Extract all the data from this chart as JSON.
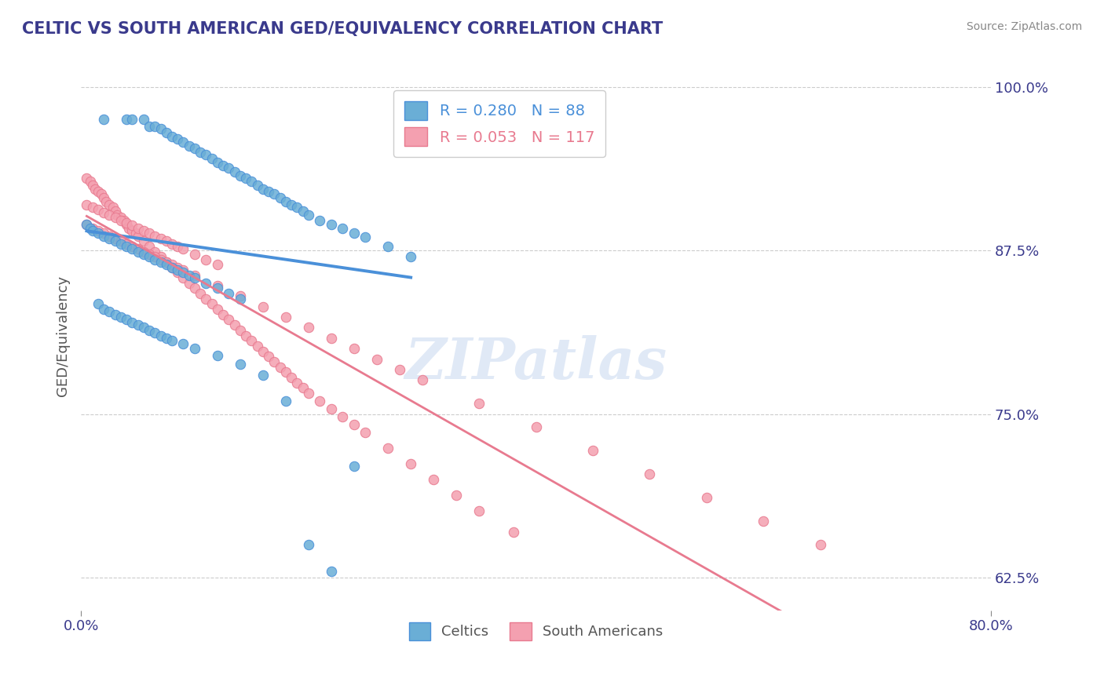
{
  "title": "CELTIC VS SOUTH AMERICAN GED/EQUIVALENCY CORRELATION CHART",
  "source": "Source: ZipAtlas.com",
  "xlabel_celtics": "Celtics",
  "xlabel_south_americans": "South Americans",
  "ylabel": "GED/Equivalency",
  "xlim": [
    0.0,
    0.8
  ],
  "ylim": [
    0.6,
    1.02
  ],
  "xticks": [
    0.0,
    0.8
  ],
  "xticklabels": [
    "0.0%",
    "80.0%"
  ],
  "yticks": [
    0.625,
    0.75,
    0.875,
    1.0
  ],
  "yticklabels": [
    "62.5%",
    "75.0%",
    "87.5%",
    "100.0%"
  ],
  "celtics_R": 0.28,
  "celtics_N": 88,
  "south_americans_R": 0.053,
  "south_americans_N": 117,
  "color_celtics": "#6aaed6",
  "color_south_americans": "#f4a0b0",
  "color_celtics_line": "#4a90d9",
  "color_south_americans_line": "#e87a8f",
  "watermark": "ZIPatlas",
  "celtics_x": [
    0.02,
    0.04,
    0.045,
    0.055,
    0.06,
    0.065,
    0.07,
    0.075,
    0.08,
    0.085,
    0.09,
    0.095,
    0.1,
    0.105,
    0.11,
    0.115,
    0.12,
    0.125,
    0.13,
    0.135,
    0.14,
    0.145,
    0.15,
    0.155,
    0.16,
    0.165,
    0.17,
    0.175,
    0.18,
    0.185,
    0.19,
    0.195,
    0.2,
    0.21,
    0.22,
    0.23,
    0.24,
    0.25,
    0.27,
    0.29,
    0.005,
    0.008,
    0.01,
    0.015,
    0.02,
    0.025,
    0.03,
    0.035,
    0.04,
    0.045,
    0.05,
    0.055,
    0.06,
    0.065,
    0.07,
    0.075,
    0.08,
    0.085,
    0.09,
    0.095,
    0.1,
    0.11,
    0.12,
    0.13,
    0.14,
    0.015,
    0.02,
    0.025,
    0.03,
    0.035,
    0.04,
    0.045,
    0.05,
    0.055,
    0.06,
    0.065,
    0.07,
    0.075,
    0.08,
    0.09,
    0.1,
    0.12,
    0.14,
    0.16,
    0.18,
    0.2,
    0.22,
    0.24
  ],
  "celtics_y": [
    0.975,
    0.975,
    0.975,
    0.975,
    0.97,
    0.97,
    0.968,
    0.965,
    0.962,
    0.96,
    0.958,
    0.955,
    0.953,
    0.95,
    0.948,
    0.945,
    0.942,
    0.94,
    0.938,
    0.935,
    0.932,
    0.93,
    0.928,
    0.925,
    0.922,
    0.92,
    0.918,
    0.915,
    0.912,
    0.91,
    0.908,
    0.905,
    0.902,
    0.898,
    0.895,
    0.892,
    0.888,
    0.885,
    0.878,
    0.87,
    0.895,
    0.892,
    0.89,
    0.888,
    0.886,
    0.884,
    0.882,
    0.88,
    0.878,
    0.876,
    0.874,
    0.872,
    0.87,
    0.868,
    0.866,
    0.864,
    0.862,
    0.86,
    0.858,
    0.856,
    0.854,
    0.85,
    0.846,
    0.842,
    0.838,
    0.834,
    0.83,
    0.828,
    0.826,
    0.824,
    0.822,
    0.82,
    0.818,
    0.816,
    0.814,
    0.812,
    0.81,
    0.808,
    0.806,
    0.804,
    0.8,
    0.795,
    0.788,
    0.78,
    0.76,
    0.65,
    0.63,
    0.71
  ],
  "south_americans_x": [
    0.005,
    0.008,
    0.01,
    0.012,
    0.015,
    0.018,
    0.02,
    0.022,
    0.025,
    0.028,
    0.03,
    0.032,
    0.035,
    0.038,
    0.04,
    0.042,
    0.045,
    0.048,
    0.05,
    0.055,
    0.06,
    0.065,
    0.07,
    0.075,
    0.08,
    0.085,
    0.09,
    0.095,
    0.1,
    0.105,
    0.11,
    0.115,
    0.12,
    0.125,
    0.13,
    0.135,
    0.14,
    0.145,
    0.15,
    0.155,
    0.16,
    0.165,
    0.17,
    0.175,
    0.18,
    0.185,
    0.19,
    0.195,
    0.2,
    0.21,
    0.22,
    0.23,
    0.24,
    0.25,
    0.27,
    0.29,
    0.31,
    0.33,
    0.35,
    0.38,
    0.005,
    0.01,
    0.015,
    0.02,
    0.025,
    0.03,
    0.035,
    0.04,
    0.045,
    0.05,
    0.055,
    0.06,
    0.065,
    0.07,
    0.075,
    0.08,
    0.085,
    0.09,
    0.1,
    0.12,
    0.14,
    0.16,
    0.18,
    0.2,
    0.22,
    0.24,
    0.26,
    0.28,
    0.3,
    0.35,
    0.4,
    0.45,
    0.5,
    0.55,
    0.6,
    0.65,
    0.005,
    0.01,
    0.015,
    0.02,
    0.025,
    0.03,
    0.035,
    0.04,
    0.045,
    0.05,
    0.055,
    0.06,
    0.065,
    0.07,
    0.075,
    0.08,
    0.085,
    0.09,
    0.1,
    0.11,
    0.12
  ],
  "south_americans_y": [
    0.93,
    0.928,
    0.925,
    0.922,
    0.92,
    0.918,
    0.915,
    0.912,
    0.91,
    0.908,
    0.905,
    0.902,
    0.9,
    0.898,
    0.895,
    0.892,
    0.89,
    0.888,
    0.886,
    0.882,
    0.878,
    0.874,
    0.87,
    0.866,
    0.862,
    0.858,
    0.854,
    0.85,
    0.846,
    0.842,
    0.838,
    0.834,
    0.83,
    0.826,
    0.822,
    0.818,
    0.814,
    0.81,
    0.806,
    0.802,
    0.798,
    0.794,
    0.79,
    0.786,
    0.782,
    0.778,
    0.774,
    0.77,
    0.766,
    0.76,
    0.754,
    0.748,
    0.742,
    0.736,
    0.724,
    0.712,
    0.7,
    0.688,
    0.676,
    0.66,
    0.895,
    0.892,
    0.89,
    0.888,
    0.886,
    0.884,
    0.882,
    0.88,
    0.878,
    0.876,
    0.874,
    0.872,
    0.87,
    0.868,
    0.866,
    0.864,
    0.862,
    0.86,
    0.856,
    0.848,
    0.84,
    0.832,
    0.824,
    0.816,
    0.808,
    0.8,
    0.792,
    0.784,
    0.776,
    0.758,
    0.74,
    0.722,
    0.704,
    0.686,
    0.668,
    0.65,
    0.91,
    0.908,
    0.906,
    0.904,
    0.902,
    0.9,
    0.898,
    0.896,
    0.894,
    0.892,
    0.89,
    0.888,
    0.886,
    0.884,
    0.882,
    0.88,
    0.878,
    0.876,
    0.872,
    0.868,
    0.864
  ]
}
